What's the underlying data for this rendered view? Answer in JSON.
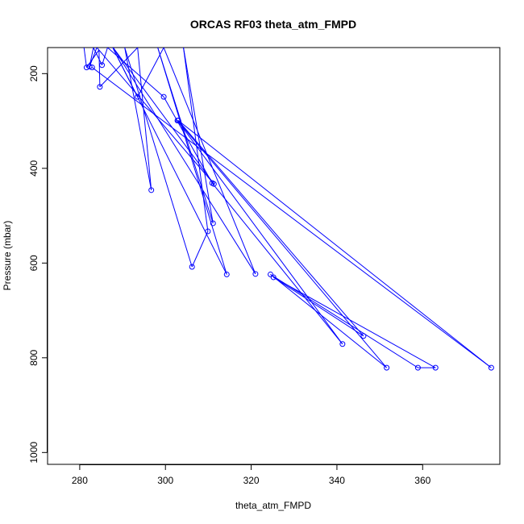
{
  "chart_data": {
    "type": "line",
    "title": "ORCAS RF03 theta_atm_FMPD",
    "xlabel": "theta_atm_FMPD",
    "ylabel": "Pressure (mbar)",
    "xlim": [
      272.5,
      378
    ],
    "ylim": [
      1025,
      145
    ],
    "y_reversed": true,
    "xticks": [
      280,
      300,
      320,
      340,
      360
    ],
    "yticks": [
      200,
      400,
      600,
      800,
      1000
    ],
    "grid": false,
    "line_color": "#0000ff",
    "marker": "open-circle",
    "series": [
      {
        "points": [
          [
            281,
            145
          ],
          [
            281.6,
            187
          ],
          [
            284.5,
            150
          ],
          [
            284.7,
            228
          ],
          [
            293.5,
            145
          ],
          [
            296.7,
            446
          ],
          [
            290.5,
            145
          ],
          [
            306.2,
            608
          ],
          [
            309.9,
            533
          ],
          [
            304.2,
            145
          ],
          [
            311.1,
            516
          ],
          [
            298.2,
            145
          ],
          [
            314.3,
            624
          ],
          [
            287.7,
            145
          ],
          [
            293.5,
            249
          ],
          [
            299.6,
            145
          ],
          [
            321,
            623
          ],
          [
            287.8,
            145
          ],
          [
            311.3,
            433
          ],
          [
            284,
            145
          ],
          [
            282.3,
            185
          ],
          [
            283.2,
            145
          ],
          [
            285.2,
            182
          ],
          [
            286.5,
            145
          ],
          [
            299.6,
            249
          ],
          [
            310.9,
            431
          ],
          [
            341.3,
            771
          ],
          [
            302.8,
            299
          ],
          [
            351.6,
            821
          ],
          [
            324.5,
            624
          ],
          [
            358.9,
            821
          ],
          [
            363,
            821
          ],
          [
            325.2,
            630
          ],
          [
            346.2,
            754
          ],
          [
            303,
            299
          ],
          [
            376,
            821
          ],
          [
            282.9,
            187
          ]
        ]
      }
    ]
  }
}
